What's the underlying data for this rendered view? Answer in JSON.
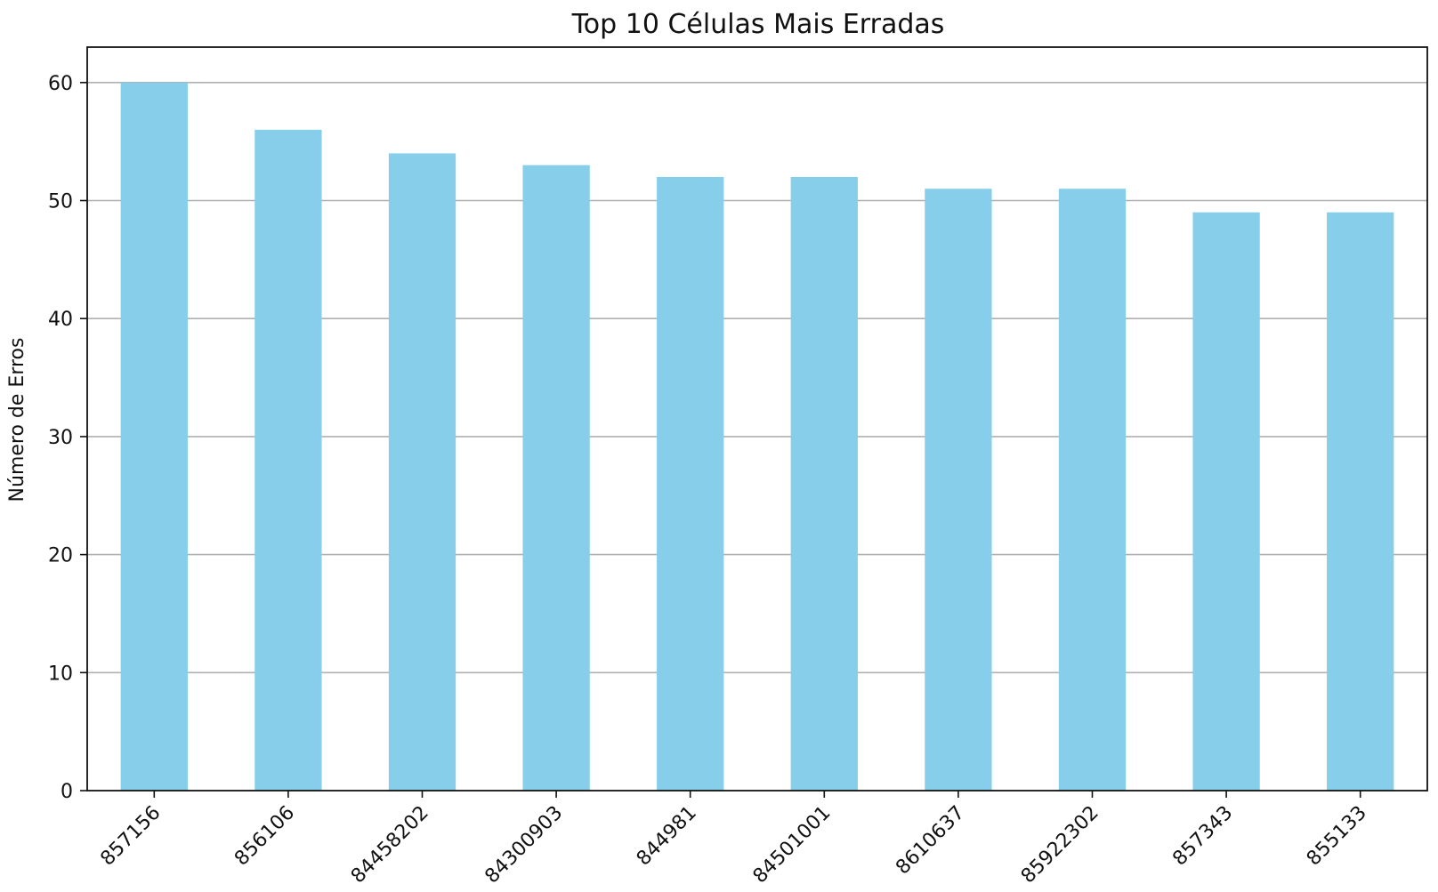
{
  "chart_data": {
    "type": "bar",
    "title": "Top 10 Células Mais Erradas",
    "xlabel": "",
    "ylabel": "Número de Erros",
    "categories": [
      "857156",
      "856106",
      "84458202",
      "84300903",
      "844981",
      "84501001",
      "8610637",
      "85922302",
      "857343",
      "855133"
    ],
    "values": [
      60,
      56,
      54,
      53,
      52,
      52,
      51,
      51,
      49,
      49
    ],
    "ylim": [
      0,
      63
    ],
    "yticks": [
      0,
      10,
      20,
      30,
      40,
      50,
      60
    ],
    "grid": "horizontal",
    "bar_color": "#87ceeb",
    "tick_label_rotation_deg": 45
  }
}
